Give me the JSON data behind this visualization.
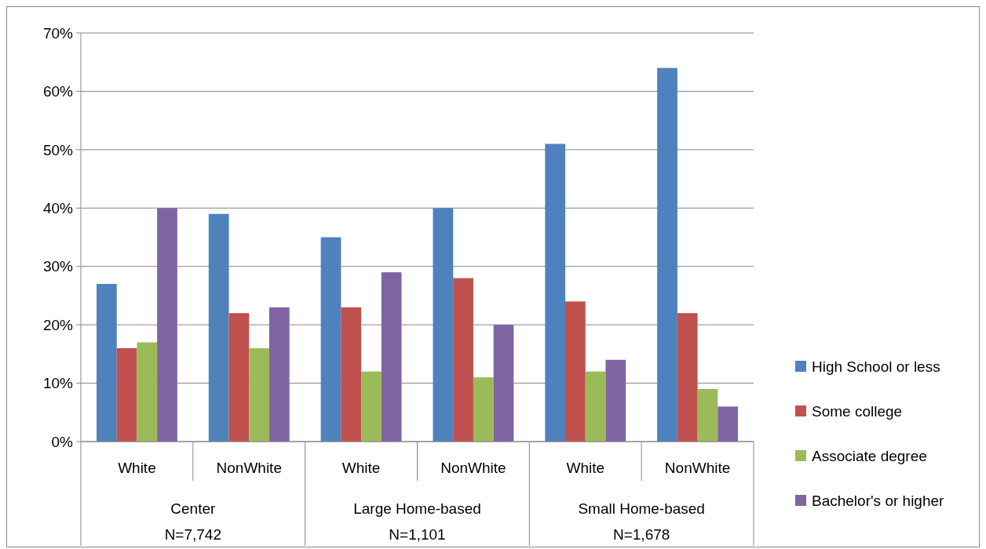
{
  "chart_data": {
    "type": "bar",
    "categories": [
      "White",
      "NonWhite",
      "White",
      "NonWhite",
      "White",
      "NonWhite"
    ],
    "annotations": [
      "Center\nN=7,742",
      "Large Home-based\nN=1,101",
      "Small Home-based\nN=1,678"
    ],
    "series": [
      {
        "name": "High School or less",
        "color": "#4f81bd",
        "values": [
          27,
          39,
          35,
          40,
          51,
          64
        ]
      },
      {
        "name": "Some college",
        "color": "#c0504d",
        "values": [
          16,
          22,
          23,
          28,
          24,
          22
        ]
      },
      {
        "name": "Associate degree",
        "color": "#9bbb59",
        "values": [
          17,
          16,
          12,
          11,
          12,
          9
        ]
      },
      {
        "name": "Bachelor's or higher",
        "color": "#8064a2",
        "values": [
          40,
          23,
          29,
          20,
          14,
          6
        ]
      }
    ],
    "ylim": [
      0,
      70
    ],
    "yticks": [
      {
        "value": 0,
        "label": "0%"
      },
      {
        "value": 10,
        "label": "10%"
      },
      {
        "value": 20,
        "label": "20%"
      },
      {
        "value": 30,
        "label": "30%"
      },
      {
        "value": 40,
        "label": "40%"
      },
      {
        "value": 50,
        "label": "50%"
      },
      {
        "value": 60,
        "label": "60%"
      },
      {
        "value": 70,
        "label": "70%"
      }
    ],
    "grid": "y",
    "legend": "right"
  }
}
